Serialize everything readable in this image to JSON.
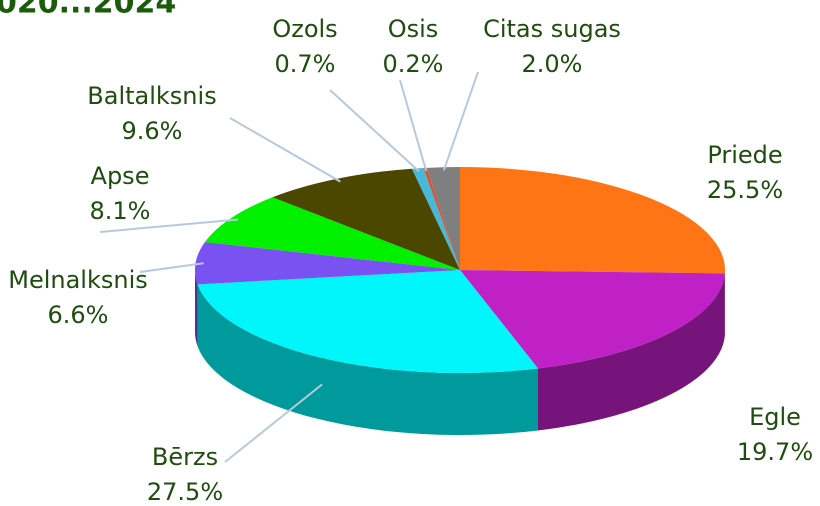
{
  "chart_data": {
    "type": "pie",
    "title": "020...2024",
    "categories": [
      "Priede",
      "Egle",
      "Bērzs",
      "Melnalksnis",
      "Apse",
      "Baltalksnis",
      "Ozols",
      "Osis",
      "Citas sugas"
    ],
    "values": [
      25.5,
      19.7,
      27.5,
      6.6,
      8.1,
      9.6,
      0.7,
      0.2,
      2.0
    ],
    "value_labels": [
      "25.5%",
      "19.7%",
      "27.5%",
      "6.6%",
      "8.1%",
      "9.6%",
      "0.7%",
      "0.2%",
      "2.0%"
    ],
    "colors": [
      "#ff7414",
      "#c021c6",
      "#00f6fb",
      "#7a52f2",
      "#00f000",
      "#4b4600",
      "#47b8d8",
      "#e0502a",
      "#7f7f7f"
    ]
  }
}
